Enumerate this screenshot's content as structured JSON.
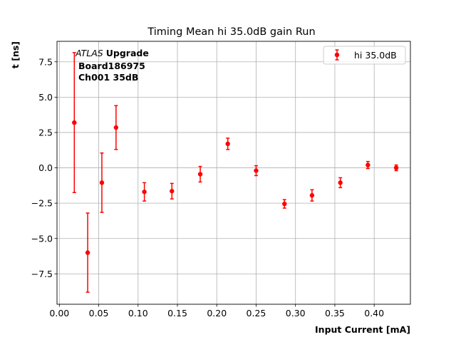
{
  "chart_data": {
    "type": "scatter",
    "title": "Timing Mean hi 35.0dB gain Run",
    "xlabel": "Input Current [mA]",
    "ylabel": "t [ns]",
    "xlim": [
      -0.003,
      0.446
    ],
    "ylim": [
      -9.65,
      8.95
    ],
    "grid": true,
    "legend_position": "top-right",
    "x_ticks": [
      "0.00",
      "0.05",
      "0.10",
      "0.15",
      "0.20",
      "0.25",
      "0.30",
      "0.35",
      "0.40"
    ],
    "x_tick_values": [
      0.0,
      0.05,
      0.1,
      0.15,
      0.2,
      0.25,
      0.3,
      0.35,
      0.4
    ],
    "y_ticks": [
      "−7.5",
      "−5.0",
      "−2.5",
      "0.0",
      "2.5",
      "5.0",
      "7.5"
    ],
    "y_tick_values": [
      -7.5,
      -5.0,
      -2.5,
      0.0,
      2.5,
      5.0,
      7.5
    ],
    "annotation": {
      "italic": "ATLAS",
      "bold": "Upgrade",
      "line2": "Board186975",
      "line3": "Ch001 35dB"
    },
    "series": [
      {
        "name": "hi 35.0dB",
        "color": "#ff0000",
        "points": [
          {
            "x": 0.019,
            "y": 3.2,
            "err": 4.95
          },
          {
            "x": 0.036,
            "y": -6.0,
            "err": 2.8
          },
          {
            "x": 0.054,
            "y": -1.05,
            "err": 2.1
          },
          {
            "x": 0.072,
            "y": 2.85,
            "err": 1.55
          },
          {
            "x": 0.108,
            "y": -1.7,
            "err": 0.65
          },
          {
            "x": 0.143,
            "y": -1.65,
            "err": 0.55
          },
          {
            "x": 0.179,
            "y": -0.45,
            "err": 0.55
          },
          {
            "x": 0.214,
            "y": 1.7,
            "err": 0.4
          },
          {
            "x": 0.25,
            "y": -0.2,
            "err": 0.35
          },
          {
            "x": 0.286,
            "y": -2.55,
            "err": 0.3
          },
          {
            "x": 0.321,
            "y": -1.95,
            "err": 0.4
          },
          {
            "x": 0.357,
            "y": -1.05,
            "err": 0.35
          },
          {
            "x": 0.392,
            "y": 0.2,
            "err": 0.25
          },
          {
            "x": 0.428,
            "y": 0.0,
            "err": 0.2
          }
        ]
      }
    ]
  }
}
